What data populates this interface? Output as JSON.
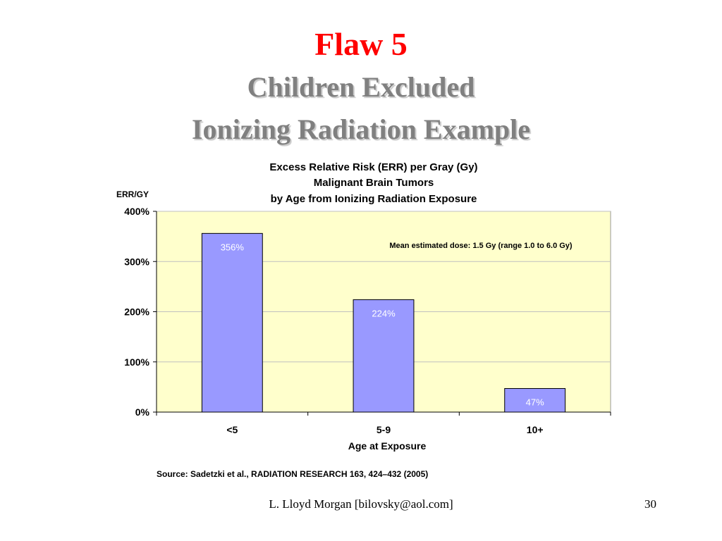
{
  "slide": {
    "title": "Flaw 5",
    "subtitle_lines": [
      "Children Excluded",
      "Ionizing Radiation Example"
    ],
    "source": "Source: Sadetzki et al., RADIATION RESEARCH 163, 424–432 (2005)",
    "footer_author": "L. Lloyd Morgan  [bilovsky@aol.com]",
    "page_number": "30"
  },
  "colors": {
    "title": "#ff0000",
    "subtitle": "#808080",
    "plot_background": "#ffffcc",
    "bar_fill": "#9999ff",
    "bar_stroke": "#000000",
    "gridline": "#c0c0c0"
  },
  "chart_data": {
    "type": "bar",
    "title_lines": [
      "Excess Relative Risk (ERR) per Gray (Gy)",
      "Malignant Brain Tumors",
      "by Age from Ionizing Radiation Exposure"
    ],
    "categories": [
      "<5",
      "5-9",
      "10+"
    ],
    "values": [
      356,
      224,
      47
    ],
    "data_labels": [
      "356%",
      "224%",
      "47%"
    ],
    "xlabel": "Age at Exposure",
    "ylabel": "ERR/GY",
    "ylim": [
      0,
      400
    ],
    "yticks": [
      0,
      100,
      200,
      300,
      400
    ],
    "ytick_labels": [
      "0%",
      "100%",
      "200%",
      "300%",
      "400%"
    ],
    "annotation": "Mean estimated dose: 1.5 Gy (range 1.0 to 6.0 Gy)",
    "grid": true,
    "legend": "none"
  }
}
